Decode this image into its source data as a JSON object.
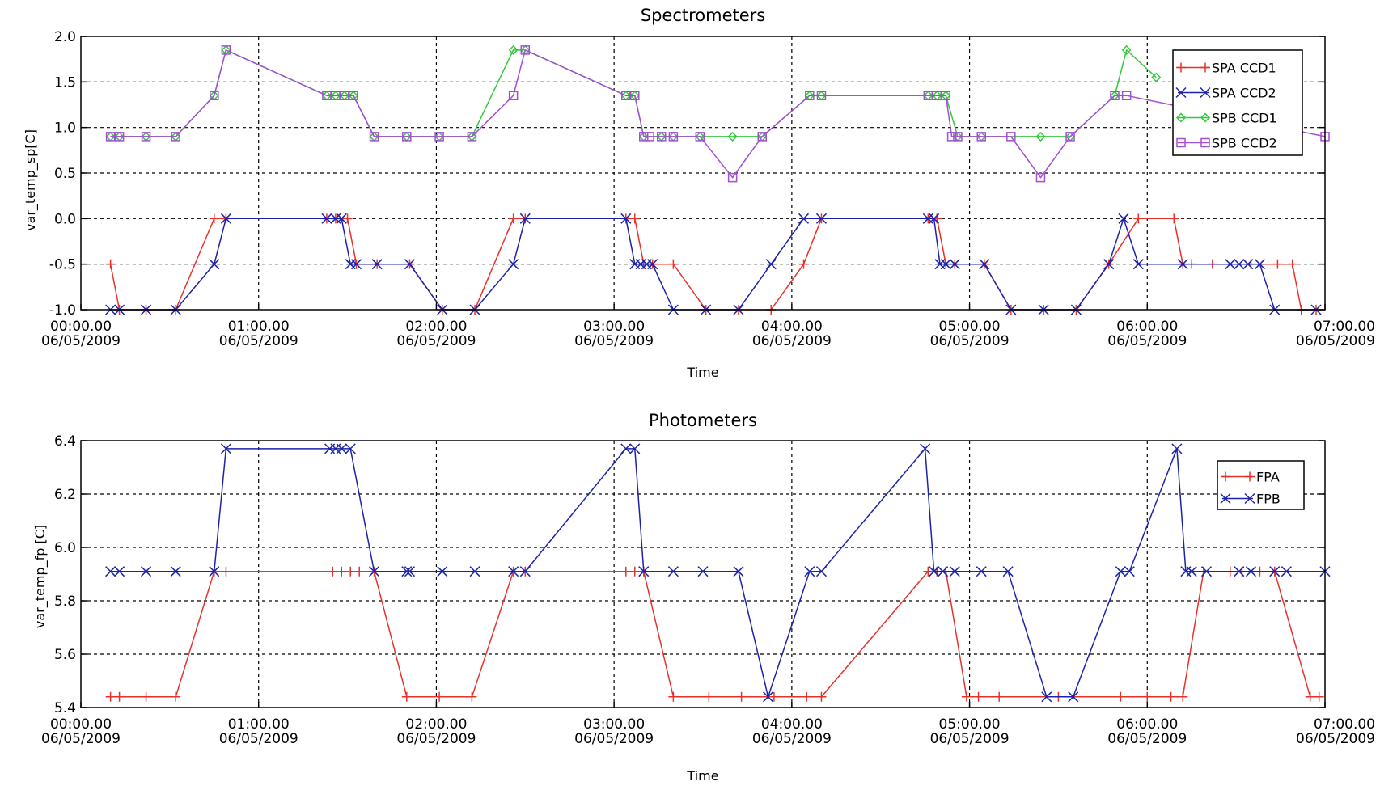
{
  "chart_data": [
    {
      "type": "line",
      "title": "Spectrometers",
      "xlabel": "Time",
      "ylabel": "var_temp_sp[C]",
      "x_tick_labels": [
        [
          "00:00.00",
          "06/05/2009"
        ],
        [
          "01:00.00",
          "06/05/2009"
        ],
        [
          "02:00.00",
          "06/05/2009"
        ],
        [
          "03:00.00",
          "06/05/2009"
        ],
        [
          "04:00.00",
          "06/05/2009"
        ],
        [
          "05:00.00",
          "06/05/2009"
        ],
        [
          "06:00.00",
          "06/05/2009"
        ],
        [
          "07:00.00",
          "06/05/2009"
        ]
      ],
      "y_ticks": [
        -1.0,
        -0.5,
        0.0,
        0.5,
        1.0,
        1.5,
        2.0
      ],
      "y_tick_labels": [
        "-1.0",
        "-0.5",
        "0.0",
        "0.5",
        "1.0",
        "1.5",
        "2.0"
      ],
      "xlim": [
        0,
        420
      ],
      "ylim": [
        -1.0,
        2.0
      ],
      "grid": true,
      "legend_position": "top-right",
      "series": [
        {
          "name": "SPA CCD1",
          "color": "#e8312a",
          "marker": "plus",
          "x": [
            10,
            13,
            22,
            32,
            45,
            49,
            83,
            86,
            90,
            93,
            100,
            111,
            122,
            133,
            146,
            150,
            184,
            187,
            190,
            193,
            200,
            211,
            222,
            233,
            244,
            250,
            286,
            289,
            292,
            295,
            305,
            314,
            325,
            336,
            347,
            357,
            369,
            372,
            375,
            382,
            395,
            404,
            409,
            412,
            417
          ],
          "y": [
            -0.5,
            -1.0,
            -1.0,
            -1.0,
            0.0,
            0.0,
            0.0,
            0.0,
            0.0,
            -0.5,
            -0.5,
            -0.5,
            -1.0,
            -1.0,
            0.0,
            0.0,
            0.0,
            0.0,
            -0.5,
            -0.5,
            -0.5,
            -1.0,
            -1.0,
            -1.0,
            -0.5,
            0.0,
            0.0,
            0.0,
            -0.5,
            -0.5,
            -0.5,
            -1.0,
            -1.0,
            -1.0,
            -0.5,
            0.0,
            0.0,
            -0.5,
            -0.5,
            -0.5,
            -0.5,
            -0.5,
            -0.5,
            -1.0,
            -1.0
          ]
        },
        {
          "name": "SPA CCD2",
          "color": "#1c23a8",
          "marker": "x",
          "x": [
            10,
            13,
            22,
            32,
            45,
            49,
            83,
            86,
            88,
            91,
            93,
            100,
            111,
            122,
            133,
            146,
            150,
            184,
            187,
            189,
            191,
            193,
            200,
            211,
            222,
            233,
            244,
            250,
            286,
            288,
            290,
            292,
            295,
            305,
            314,
            325,
            336,
            347,
            352,
            357,
            372,
            388,
            391,
            394,
            398,
            403,
            417
          ],
          "y": [
            -1.0,
            -1.0,
            -1.0,
            -1.0,
            -0.5,
            0.0,
            0.0,
            0.0,
            0.0,
            -0.5,
            -0.5,
            -0.5,
            -0.5,
            -1.0,
            -1.0,
            -0.5,
            0.0,
            0.0,
            -0.5,
            -0.5,
            -0.5,
            -0.5,
            -1.0,
            -1.0,
            -1.0,
            -0.5,
            0.0,
            0.0,
            0.0,
            0.0,
            -0.5,
            -0.5,
            -0.5,
            -0.5,
            -1.0,
            -1.0,
            -1.0,
            -0.5,
            0.0,
            -0.5,
            -0.5,
            -0.5,
            -0.5,
            -0.5,
            -0.5,
            -1.0,
            -1.0
          ]
        },
        {
          "name": "SPB CCD1",
          "color": "#35c83c",
          "marker": "diamond",
          "x": [
            10,
            13,
            22,
            32,
            45,
            49,
            83,
            86,
            89,
            92,
            99,
            110,
            121,
            132,
            146,
            150,
            184,
            187,
            190,
            196,
            200,
            209,
            220,
            230,
            246,
            250,
            286,
            289,
            292,
            296,
            304,
            324,
            334,
            349,
            353,
            363
          ],
          "y": [
            0.9,
            0.9,
            0.9,
            0.9,
            1.35,
            1.85,
            1.35,
            1.35,
            1.35,
            1.35,
            0.9,
            0.9,
            0.9,
            0.9,
            1.85,
            1.85,
            1.35,
            1.35,
            0.9,
            0.9,
            0.9,
            0.9,
            0.9,
            0.9,
            1.35,
            1.35,
            1.35,
            1.35,
            1.35,
            0.9,
            0.9,
            0.9,
            0.9,
            1.35,
            1.85,
            1.55
          ]
        },
        {
          "name": "SPB CCD2",
          "color": "#a24fd4",
          "marker": "square",
          "x": [
            10,
            13,
            22,
            32,
            45,
            49,
            83,
            86,
            89,
            92,
            99,
            110,
            121,
            132,
            146,
            150,
            184,
            187,
            190,
            192,
            196,
            200,
            209,
            220,
            230,
            246,
            250,
            286,
            289,
            292,
            294,
            296,
            304,
            314,
            324,
            334,
            349,
            353,
            420
          ],
          "y": [
            0.9,
            0.9,
            0.9,
            0.9,
            1.35,
            1.85,
            1.35,
            1.35,
            1.35,
            1.35,
            0.9,
            0.9,
            0.9,
            0.9,
            1.35,
            1.85,
            1.35,
            1.35,
            0.9,
            0.9,
            0.9,
            0.9,
            0.9,
            0.45,
            0.9,
            1.35,
            1.35,
            1.35,
            1.35,
            1.35,
            0.9,
            0.9,
            0.9,
            0.9,
            0.45,
            0.9,
            1.35,
            1.35,
            0.9
          ]
        }
      ]
    },
    {
      "type": "line",
      "title": "Photometers",
      "xlabel": "Time",
      "ylabel": "var_temp_fp [C]",
      "x_tick_labels": [
        [
          "00:00.00",
          "06/05/2009"
        ],
        [
          "01:00.00",
          "06/05/2009"
        ],
        [
          "02:00.00",
          "06/05/2009"
        ],
        [
          "03:00.00",
          "06/05/2009"
        ],
        [
          "04:00.00",
          "06/05/2009"
        ],
        [
          "05:00.00",
          "06/05/2009"
        ],
        [
          "06:00.00",
          "06/05/2009"
        ],
        [
          "07:00.00",
          "06/05/2009"
        ]
      ],
      "y_ticks": [
        5.4,
        5.6,
        5.8,
        6.0,
        6.2,
        6.4
      ],
      "y_tick_labels": [
        "5.4",
        "5.6",
        "5.8",
        "6.0",
        "6.2",
        "6.4"
      ],
      "xlim": [
        0,
        420
      ],
      "ylim": [
        5.4,
        6.4
      ],
      "grid": true,
      "legend_position": "top-right",
      "series": [
        {
          "name": "FPA",
          "color": "#e8312a",
          "marker": "plus",
          "x": [
            10,
            13,
            22,
            32,
            45,
            49,
            85,
            88,
            91,
            94,
            99,
            110,
            121,
            132,
            146,
            150,
            184,
            187,
            190,
            200,
            212,
            223,
            234,
            245,
            250,
            286,
            289,
            292,
            299,
            303,
            310,
            330,
            351,
            360,
            368,
            372,
            379,
            388,
            392,
            398,
            403,
            415,
            418
          ],
          "y": [
            5.44,
            5.44,
            5.44,
            5.44,
            5.91,
            5.91,
            5.91,
            5.91,
            5.91,
            5.91,
            5.91,
            5.44,
            5.44,
            5.44,
            5.91,
            5.91,
            5.91,
            5.91,
            5.91,
            5.44,
            5.44,
            5.44,
            5.44,
            5.44,
            5.44,
            5.91,
            5.91,
            5.91,
            5.44,
            5.44,
            5.44,
            5.44,
            5.44,
            5.44,
            5.44,
            5.44,
            5.91,
            5.91,
            5.91,
            5.91,
            5.91,
            5.44,
            5.44
          ]
        },
        {
          "name": "FPB",
          "color": "#1c23a8",
          "marker": "x",
          "x": [
            10,
            13,
            22,
            32,
            45,
            49,
            84,
            86,
            88,
            91,
            99,
            110,
            111,
            122,
            133,
            146,
            150,
            184,
            187,
            190,
            200,
            210,
            222,
            232,
            246,
            250,
            285,
            288,
            291,
            295,
            304,
            313,
            326,
            335,
            351,
            354,
            370,
            373,
            375,
            380,
            391,
            395,
            403,
            407,
            420
          ],
          "y": [
            5.91,
            5.91,
            5.91,
            5.91,
            5.91,
            6.37,
            6.37,
            6.37,
            6.37,
            6.37,
            5.91,
            5.91,
            5.91,
            5.91,
            5.91,
            5.91,
            5.91,
            6.37,
            6.37,
            5.91,
            5.91,
            5.91,
            5.91,
            5.44,
            5.91,
            5.91,
            6.37,
            5.91,
            5.91,
            5.91,
            5.91,
            5.91,
            5.44,
            5.44,
            5.91,
            5.91,
            6.37,
            5.91,
            5.91,
            5.91,
            5.91,
            5.91,
            5.91,
            5.91,
            5.91
          ]
        }
      ]
    }
  ]
}
